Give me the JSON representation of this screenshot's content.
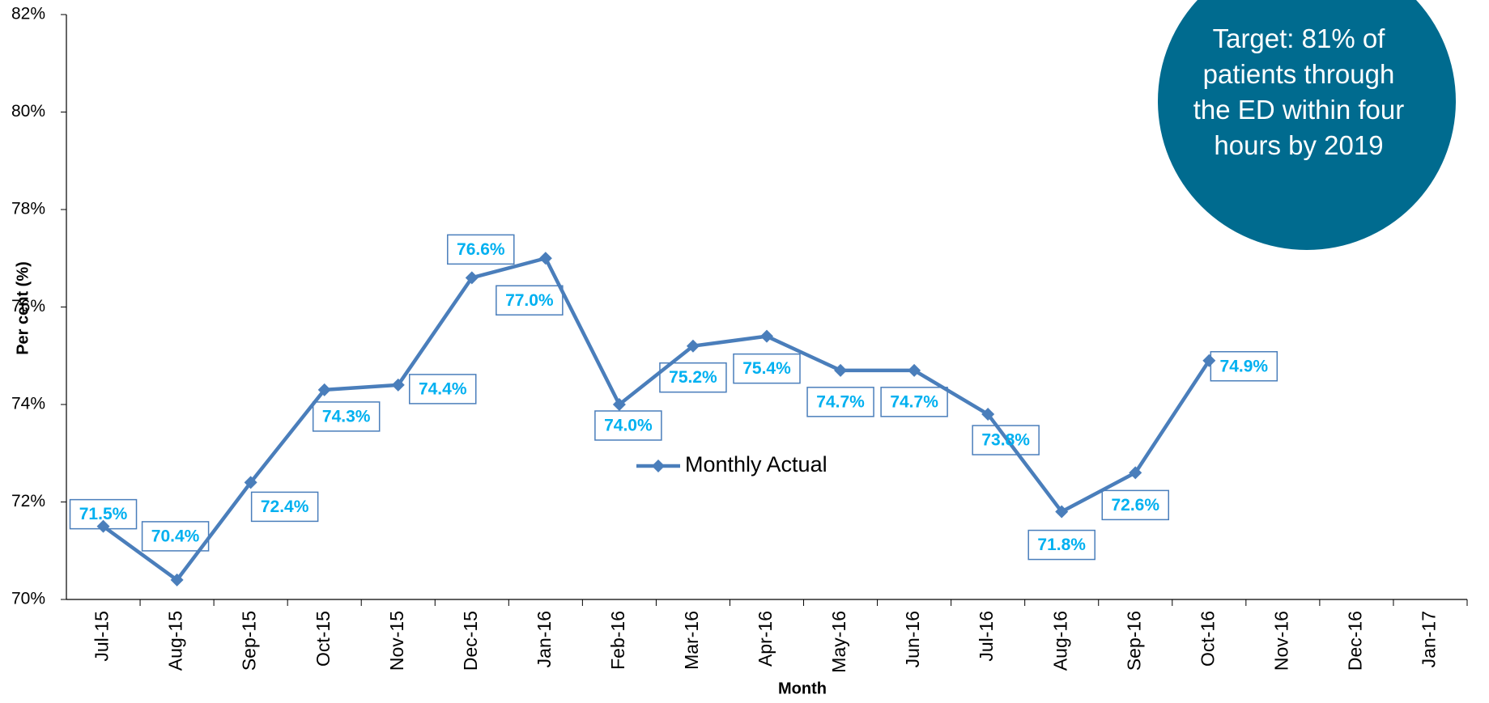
{
  "chart_data": {
    "type": "line",
    "x_label": "Month",
    "y_label": "Per cent (%)",
    "annotation": "Target: 81% of patients through the ED within four hours by 2019",
    "categories": [
      "Jul-15",
      "Aug-15",
      "Sep-15",
      "Oct-15",
      "Nov-15",
      "Dec-15",
      "Jan-16",
      "Feb-16",
      "Mar-16",
      "Apr-16",
      "May-16",
      "Jun-16",
      "Jul-16",
      "Aug-16",
      "Sep-16",
      "Oct-16",
      "Nov-16",
      "Dec-16",
      "Jan-17"
    ],
    "series": [
      {
        "name": "Monthly Actual",
        "color": "#4a7ebb",
        "values": [
          71.5,
          70.4,
          72.4,
          74.3,
          74.4,
          76.6,
          77.0,
          74.0,
          75.2,
          75.4,
          74.7,
          74.7,
          73.8,
          71.8,
          72.6,
          74.9,
          null,
          null,
          null
        ],
        "value_labels": [
          "71.5%",
          "70.4%",
          "72.4%",
          "74.3%",
          "74.4%",
          "76.6%",
          "77.0%",
          "74.0%",
          "75.2%",
          "75.4%",
          "74.7%",
          "74.7%",
          "73.8%",
          "71.8%",
          "72.6%",
          "74.9%",
          null,
          null,
          null
        ]
      }
    ],
    "ylim": [
      70,
      82
    ],
    "yticks": [
      {
        "value": 70,
        "label": "70%"
      },
      {
        "value": 72,
        "label": "72%"
      },
      {
        "value": 74,
        "label": "74%"
      },
      {
        "value": 76,
        "label": "76%"
      },
      {
        "value": 78,
        "label": "78%"
      },
      {
        "value": 80,
        "label": "80%"
      },
      {
        "value": 82,
        "label": "82%"
      }
    ],
    "label_color": "#00b0f0",
    "annotation_color": "#006b8f",
    "legend": "center"
  }
}
